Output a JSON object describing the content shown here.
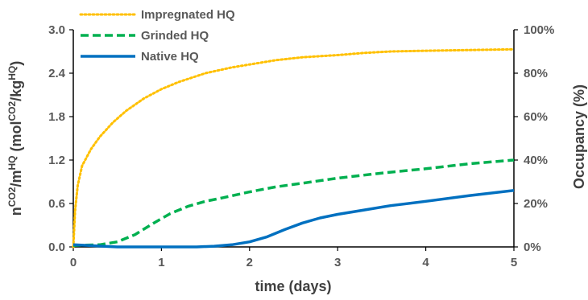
{
  "chart_data": {
    "type": "line",
    "xlabel": "time (days)",
    "ylabel": {
      "parts": [
        "n",
        "CO2",
        "/m",
        "HQ",
        " (mol",
        "CO2",
        "/kg",
        "HQ",
        ")"
      ]
    },
    "y2label": "Occupancy (%)",
    "xlim": [
      0,
      5
    ],
    "ylim": [
      0,
      3.0
    ],
    "y2lim": [
      0,
      100
    ],
    "xticks": [
      "0",
      "1",
      "2",
      "3",
      "4",
      "5"
    ],
    "yticks": [
      "0.0",
      "0.6",
      "1.2",
      "1.8",
      "2.4",
      "3.0"
    ],
    "y2ticks": [
      "0%",
      "20%",
      "40%",
      "60%",
      "80%",
      "100%"
    ],
    "legend_position": "top-left",
    "grid": false,
    "series": [
      {
        "name": "Impregnated HQ",
        "color": "#FFC000",
        "style": "dotted",
        "x": [
          0,
          0.02,
          0.05,
          0.1,
          0.2,
          0.3,
          0.45,
          0.6,
          0.8,
          1.0,
          1.2,
          1.5,
          1.8,
          2.0,
          2.3,
          2.6,
          3.0,
          3.3,
          3.6,
          4.0,
          4.5,
          5.0
        ],
        "y": [
          0.0,
          0.5,
          0.85,
          1.12,
          1.35,
          1.52,
          1.72,
          1.88,
          2.05,
          2.18,
          2.28,
          2.4,
          2.48,
          2.52,
          2.58,
          2.62,
          2.65,
          2.68,
          2.7,
          2.71,
          2.72,
          2.73
        ]
      },
      {
        "name": "Grinded HQ",
        "color": "#00B050",
        "style": "dashed",
        "x": [
          0,
          0.3,
          0.5,
          0.7,
          0.9,
          1.1,
          1.3,
          1.5,
          1.7,
          2.0,
          2.3,
          2.6,
          3.0,
          3.5,
          4.0,
          4.5,
          5.0
        ],
        "y": [
          0.02,
          0.03,
          0.07,
          0.17,
          0.32,
          0.46,
          0.56,
          0.63,
          0.68,
          0.76,
          0.83,
          0.88,
          0.95,
          1.02,
          1.08,
          1.15,
          1.2
        ]
      },
      {
        "name": "Native HQ",
        "color": "#0070C0",
        "style": "solid",
        "x": [
          0,
          0.5,
          1.0,
          1.4,
          1.6,
          1.8,
          2.0,
          2.2,
          2.4,
          2.6,
          2.8,
          3.0,
          3.3,
          3.6,
          4.0,
          4.5,
          5.0
        ],
        "y": [
          0.03,
          0.0,
          0.0,
          0.0,
          0.01,
          0.03,
          0.07,
          0.14,
          0.24,
          0.33,
          0.4,
          0.45,
          0.51,
          0.57,
          0.63,
          0.71,
          0.78
        ]
      }
    ]
  }
}
